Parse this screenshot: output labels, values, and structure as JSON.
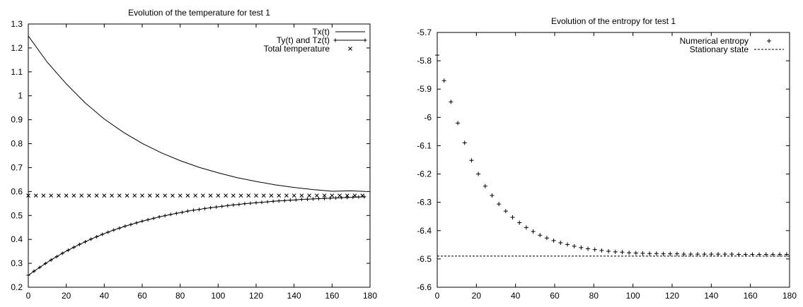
{
  "chart_data": [
    {
      "type": "line",
      "title": "Evolution of the temperature for test 1",
      "xlabel": "",
      "ylabel": "",
      "xlim": [
        0,
        180
      ],
      "ylim": [
        0.2,
        1.3
      ],
      "xticks": [
        "0",
        "20",
        "40",
        "60",
        "80",
        "100",
        "120",
        "140",
        "160",
        "180"
      ],
      "yticks": [
        "0.2",
        "0.3",
        "0.4",
        "0.5",
        "0.6",
        "0.7",
        "0.8",
        "0.9",
        "1",
        "1.1",
        "1.2",
        "1.3"
      ],
      "grid": false,
      "legend_position": "top-right",
      "series": [
        {
          "name": "Tx(t)",
          "style": "line",
          "x": [
            0,
            10,
            20,
            30,
            40,
            50,
            60,
            70,
            80,
            90,
            100,
            110,
            120,
            130,
            140,
            150,
            160,
            170,
            178
          ],
          "y": [
            1.25,
            1.14,
            1.05,
            0.97,
            0.903,
            0.848,
            0.801,
            0.762,
            0.729,
            0.701,
            0.678,
            0.658,
            0.642,
            0.628,
            0.617,
            0.608,
            0.601,
            0.603,
            0.6
          ]
        },
        {
          "name": "Ty(t) and Tz(t)",
          "style": "line-plus",
          "x": [
            0,
            3,
            6,
            9,
            12,
            15,
            18,
            21,
            24,
            27,
            30,
            33,
            36,
            39,
            42,
            45,
            48,
            51,
            54,
            57,
            60,
            63,
            66,
            69,
            72,
            75,
            78,
            81,
            84,
            87,
            90,
            93,
            96,
            99,
            102,
            105,
            108,
            111,
            114,
            117,
            120,
            123,
            126,
            129,
            132,
            135,
            138,
            141,
            144,
            147,
            150,
            153,
            156,
            159,
            162,
            165,
            168,
            171,
            174,
            177
          ],
          "y": [
            0.25,
            0.267,
            0.283,
            0.299,
            0.314,
            0.328,
            0.342,
            0.355,
            0.367,
            0.379,
            0.39,
            0.401,
            0.411,
            0.421,
            0.43,
            0.439,
            0.447,
            0.455,
            0.462,
            0.469,
            0.476,
            0.482,
            0.488,
            0.494,
            0.499,
            0.504,
            0.509,
            0.513,
            0.518,
            0.522,
            0.525,
            0.529,
            0.532,
            0.535,
            0.538,
            0.541,
            0.544,
            0.546,
            0.549,
            0.551,
            0.553,
            0.555,
            0.557,
            0.559,
            0.561,
            0.562,
            0.564,
            0.565,
            0.567,
            0.568,
            0.569,
            0.57,
            0.571,
            0.572,
            0.573,
            0.574,
            0.575,
            0.576,
            0.577,
            0.578
          ]
        },
        {
          "name": "Total temperature",
          "style": "cross",
          "x": [
            0,
            4,
            8,
            12,
            16,
            20,
            24,
            28,
            32,
            36,
            40,
            44,
            48,
            52,
            56,
            60,
            64,
            68,
            72,
            76,
            80,
            84,
            88,
            92,
            96,
            100,
            104,
            108,
            112,
            116,
            120,
            124,
            128,
            132,
            136,
            140,
            144,
            148,
            152,
            156,
            160,
            164,
            168,
            172,
            176
          ],
          "y": [
            0.583,
            0.583,
            0.583,
            0.583,
            0.583,
            0.583,
            0.583,
            0.583,
            0.583,
            0.583,
            0.583,
            0.583,
            0.583,
            0.583,
            0.583,
            0.583,
            0.583,
            0.583,
            0.583,
            0.583,
            0.583,
            0.583,
            0.583,
            0.583,
            0.583,
            0.583,
            0.583,
            0.583,
            0.583,
            0.583,
            0.583,
            0.583,
            0.583,
            0.583,
            0.583,
            0.583,
            0.583,
            0.583,
            0.583,
            0.583,
            0.583,
            0.583,
            0.583,
            0.583,
            0.583
          ]
        }
      ]
    },
    {
      "type": "scatter",
      "title": "Evolution of the entropy for test 1",
      "xlabel": "",
      "ylabel": "",
      "xlim": [
        0,
        180
      ],
      "ylim": [
        -6.6,
        -5.7
      ],
      "xticks": [
        "0",
        "20",
        "40",
        "60",
        "80",
        "100",
        "120",
        "140",
        "160",
        "180"
      ],
      "yticks": [
        "-6.6",
        "-6.5",
        "-6.4",
        "-6.3",
        "-6.2",
        "-6.1",
        "-6",
        "-5.9",
        "-5.8",
        "-5.7"
      ],
      "grid": false,
      "legend_position": "top-right",
      "series": [
        {
          "name": "Numerical entropy",
          "style": "plus",
          "x": [
            0,
            3.5,
            7,
            10.5,
            14,
            17.5,
            21,
            24.5,
            28,
            31.5,
            35,
            38.5,
            42,
            45.5,
            49,
            52.5,
            56,
            59.5,
            63,
            66.5,
            70,
            73.5,
            77,
            80.5,
            84,
            87.5,
            91,
            94.5,
            98,
            101.5,
            105,
            108.5,
            112,
            115.5,
            119,
            122.5,
            126,
            129.5,
            133,
            136.5,
            140,
            143.5,
            147,
            150.5,
            154,
            157.5,
            161,
            164.5,
            168,
            171.5,
            175,
            178.5
          ],
          "y": [
            -5.78,
            -5.87,
            -5.945,
            -6.02,
            -6.09,
            -6.152,
            -6.2,
            -6.243,
            -6.276,
            -6.306,
            -6.331,
            -6.353,
            -6.372,
            -6.389,
            -6.403,
            -6.416,
            -6.426,
            -6.435,
            -6.443,
            -6.449,
            -6.455,
            -6.46,
            -6.464,
            -6.467,
            -6.47,
            -6.473,
            -6.475,
            -6.476,
            -6.478,
            -6.479,
            -6.48,
            -6.481,
            -6.481,
            -6.482,
            -6.482,
            -6.482,
            -6.483,
            -6.483,
            -6.483,
            -6.483,
            -6.483,
            -6.483,
            -6.483,
            -6.483,
            -6.484,
            -6.484,
            -6.484,
            -6.484,
            -6.484,
            -6.484,
            -6.484,
            -6.484
          ]
        },
        {
          "name": "Stationary state",
          "style": "dashed",
          "x": [
            0,
            180
          ],
          "y": [
            -6.49,
            -6.49
          ]
        }
      ]
    }
  ]
}
